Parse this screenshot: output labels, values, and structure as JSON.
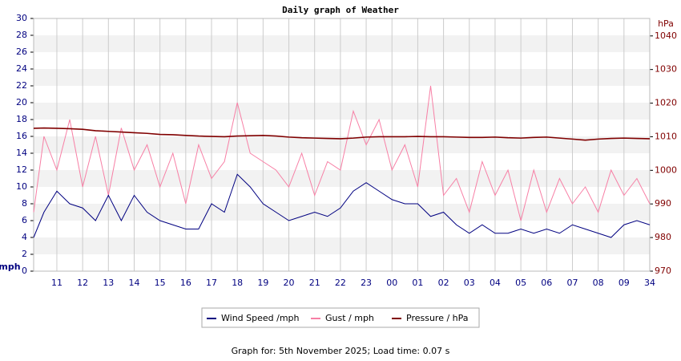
{
  "chart_data": {
    "type": "line",
    "title": "Daily graph of Weather",
    "y_label": "mph",
    "y2_label": "hPa",
    "caption": "Graph for: 5th November 2025; Load time: 0.07 s",
    "x": [
      10.1,
      10.5,
      11,
      11.5,
      12,
      12.5,
      13,
      13.5,
      14,
      14.5,
      15,
      15.5,
      16,
      16.5,
      17,
      17.5,
      18,
      18.5,
      19,
      19.5,
      20,
      20.5,
      21,
      21.5,
      22,
      22.5,
      23,
      23.5,
      24,
      24.5,
      25,
      25.5,
      26,
      26.5,
      27,
      27.5,
      28,
      28.5,
      29,
      29.5,
      30,
      30.5,
      31,
      31.5,
      32,
      32.5,
      33,
      33.5,
      34
    ],
    "xlim": [
      10.1,
      34
    ],
    "xticks": [
      11,
      12,
      13,
      14,
      15,
      16,
      17,
      18,
      19,
      20,
      21,
      22,
      23,
      {
        "value": 24,
        "label": "00"
      },
      {
        "value": 25,
        "label": "01"
      },
      {
        "value": 26,
        "label": "02"
      },
      {
        "value": 27,
        "label": "03"
      },
      {
        "value": 28,
        "label": "04"
      },
      {
        "value": 29,
        "label": "05"
      },
      {
        "value": 30,
        "label": "06"
      },
      {
        "value": 31,
        "label": "07"
      },
      {
        "value": 32,
        "label": "08"
      },
      {
        "value": 33,
        "label": "09"
      },
      34
    ],
    "ylim": [
      0,
      30
    ],
    "yticks": [
      0,
      2,
      4,
      6,
      8,
      10,
      12,
      14,
      16,
      18,
      20,
      22,
      24,
      26,
      28,
      30
    ],
    "y2lim": [
      970,
      1045.2
    ],
    "y2ticks": [
      970,
      980,
      990,
      1000,
      1010,
      1020,
      1030,
      1040
    ],
    "grid": true,
    "series": [
      {
        "name": "Wind Speed /mph",
        "color": "#000080",
        "values": [
          4,
          7,
          9.5,
          8,
          7.5,
          6,
          9,
          6,
          9,
          7,
          6,
          5.5,
          5,
          5,
          8,
          7,
          11.5,
          10,
          8,
          7,
          6,
          6.5,
          7,
          6.5,
          7.5,
          9.5,
          10.5,
          9.5,
          8.5,
          8,
          8,
          6.5,
          7,
          5.5,
          4.5,
          5.5,
          4.5,
          4.5,
          5,
          4.5,
          5,
          4.5,
          5.5,
          5,
          4.5,
          4,
          5.5,
          6,
          5.5
        ]
      },
      {
        "name": "Gust / mph",
        "color": "#f77fa5",
        "values": [
          7,
          16,
          12,
          18,
          10,
          16,
          9,
          17,
          12,
          15,
          10,
          14,
          8,
          15,
          11,
          13,
          20,
          14,
          13,
          12,
          10,
          14,
          9,
          13,
          12,
          19,
          15,
          18,
          12,
          15,
          10,
          22,
          9,
          11,
          7,
          13,
          9,
          12,
          6,
          12,
          7,
          11,
          8,
          10,
          7,
          12,
          9,
          11,
          8
        ]
      },
      {
        "name": "Pressure / hPa",
        "color": "#800000",
        "axis": "y2",
        "values": [
          1012.5,
          1012.6,
          1012.5,
          1012.4,
          1012.2,
          1011.8,
          1011.6,
          1011.4,
          1011.2,
          1011,
          1010.7,
          1010.6,
          1010.4,
          1010.2,
          1010.1,
          1010,
          1010.2,
          1010.3,
          1010.4,
          1010.2,
          1009.9,
          1009.7,
          1009.6,
          1009.5,
          1009.4,
          1009.6,
          1009.9,
          1010,
          1010,
          1010,
          1010.1,
          1010,
          1010,
          1009.9,
          1009.8,
          1009.8,
          1009.9,
          1009.7,
          1009.6,
          1009.8,
          1009.9,
          1009.6,
          1009.3,
          1009.0,
          1009.3,
          1009.5,
          1009.6,
          1009.5,
          1009.4
        ]
      }
    ]
  }
}
